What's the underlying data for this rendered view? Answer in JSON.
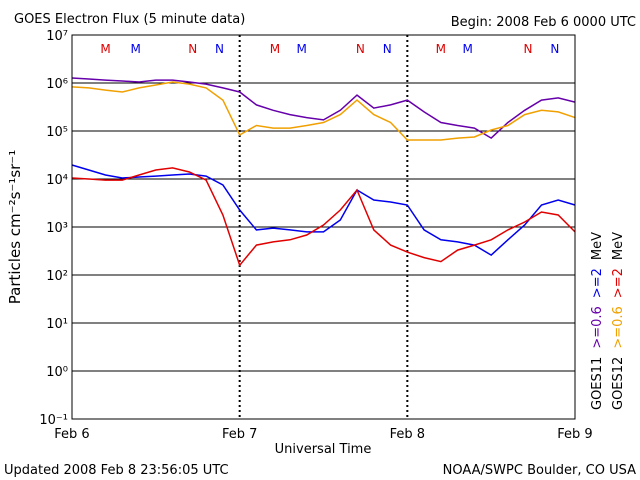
{
  "chart_data": {
    "type": "line",
    "title": "GOES Electron Flux (5 minute data)",
    "begin": "Begin: 2008 Feb 6 0000 UTC",
    "y_label": "Particles cm⁻²s⁻¹sr⁻¹",
    "x_label": "Universal Time",
    "updated": "Updated 2008 Feb  8 23:56:05 UTC",
    "source": "NOAA/SWPC Boulder, CO USA",
    "log_y": true,
    "grid": true,
    "threshold": 1000,
    "xlim": [
      0,
      3
    ],
    "xticks": [
      {
        "value": 0,
        "label": "Feb 6"
      },
      {
        "value": 1,
        "label": "Feb 7"
      },
      {
        "value": 2,
        "label": "Feb 8"
      },
      {
        "value": 3,
        "label": "Feb 9"
      }
    ],
    "ylim": [
      0.1,
      10000000
    ],
    "yticks": [
      {
        "value": 0.1,
        "label": "10⁻¹"
      },
      {
        "value": 1,
        "label": "10⁰"
      },
      {
        "value": 10,
        "label": "10¹"
      },
      {
        "value": 100,
        "label": "10²"
      },
      {
        "value": 1000,
        "label": "10³"
      },
      {
        "value": 10000,
        "label": "10⁴"
      },
      {
        "value": 100000,
        "label": "10⁵"
      },
      {
        "value": 1000000,
        "label": "10⁶"
      },
      {
        "value": 10000000,
        "label": "10⁷"
      }
    ],
    "legend": {
      "satellites": [
        "GOES11",
        "GOES12"
      ],
      "unit": "MeV"
    },
    "annotations": [
      {
        "label": "M",
        "x": 0.2,
        "color": "#e00000"
      },
      {
        "label": "M",
        "x": 0.38,
        "color": "#0000ee"
      },
      {
        "label": "N",
        "x": 0.72,
        "color": "#e00000"
      },
      {
        "label": "N",
        "x": 0.88,
        "color": "#0000ee"
      },
      {
        "label": "M",
        "x": 1.21,
        "color": "#e00000"
      },
      {
        "label": "M",
        "x": 1.37,
        "color": "#0000ee"
      },
      {
        "label": "N",
        "x": 1.72,
        "color": "#e00000"
      },
      {
        "label": "N",
        "x": 1.88,
        "color": "#0000ee"
      },
      {
        "label": "M",
        "x": 2.2,
        "color": "#e00000"
      },
      {
        "label": "M",
        "x": 2.36,
        "color": "#0000ee"
      },
      {
        "label": "N",
        "x": 2.72,
        "color": "#e00000"
      },
      {
        "label": "N",
        "x": 2.88,
        "color": "#0000ee"
      }
    ],
    "x": [
      0,
      0.1,
      0.2,
      0.3,
      0.4,
      0.5,
      0.6,
      0.7,
      0.8,
      0.9,
      1.0,
      1.1,
      1.2,
      1.3,
      1.4,
      1.5,
      1.6,
      1.7,
      1.8,
      1.9,
      2.0,
      2.1,
      2.2,
      2.3,
      2.4,
      2.5,
      2.6,
      2.7,
      2.8,
      2.9,
      3.0
    ],
    "series": [
      {
        "name": ">=0.6",
        "satellite": 0,
        "color": "#6600aa",
        "values": [
          1270000,
          1210000,
          1150000,
          1100000,
          1050000,
          1150000,
          1150000,
          1050000,
          950000,
          790000,
          650000,
          350000,
          270000,
          220000,
          190000,
          170000,
          270000,
          560000,
          300000,
          350000,
          440000,
          250000,
          150000,
          130000,
          115000,
          71000,
          150000,
          270000,
          440000,
          490000,
          400000
        ]
      },
      {
        "name": ">=0.6",
        "satellite": 1,
        "color": "#f0a000",
        "values": [
          830000,
          790000,
          710000,
          650000,
          790000,
          910000,
          1050000,
          950000,
          790000,
          440000,
          83000,
          130000,
          115000,
          115000,
          130000,
          150000,
          220000,
          440000,
          220000,
          150000,
          65000,
          65000,
          65000,
          71000,
          75000,
          105000,
          130000,
          220000,
          270000,
          250000,
          190000
        ]
      },
      {
        "name": ">=2",
        "satellite": 0,
        "color": "#0000ee",
        "values": [
          19600,
          15400,
          12100,
          10500,
          11000,
          11500,
          12100,
          12700,
          11500,
          7500,
          2260,
          870,
          950,
          870,
          790,
          790,
          1400,
          5900,
          3650,
          3320,
          2870,
          870,
          540,
          490,
          420,
          260,
          540,
          1100,
          2870,
          3650,
          2870
        ]
      },
      {
        "name": ">=2",
        "satellite": 1,
        "color": "#e00000",
        "values": [
          10500,
          10000,
          9500,
          9500,
          12100,
          15400,
          17000,
          14000,
          9500,
          1780,
          160,
          420,
          490,
          540,
          680,
          1100,
          2260,
          5900,
          870,
          420,
          300,
          230,
          190,
          330,
          420,
          540,
          870,
          1270,
          2050,
          1780,
          790
        ]
      }
    ]
  }
}
